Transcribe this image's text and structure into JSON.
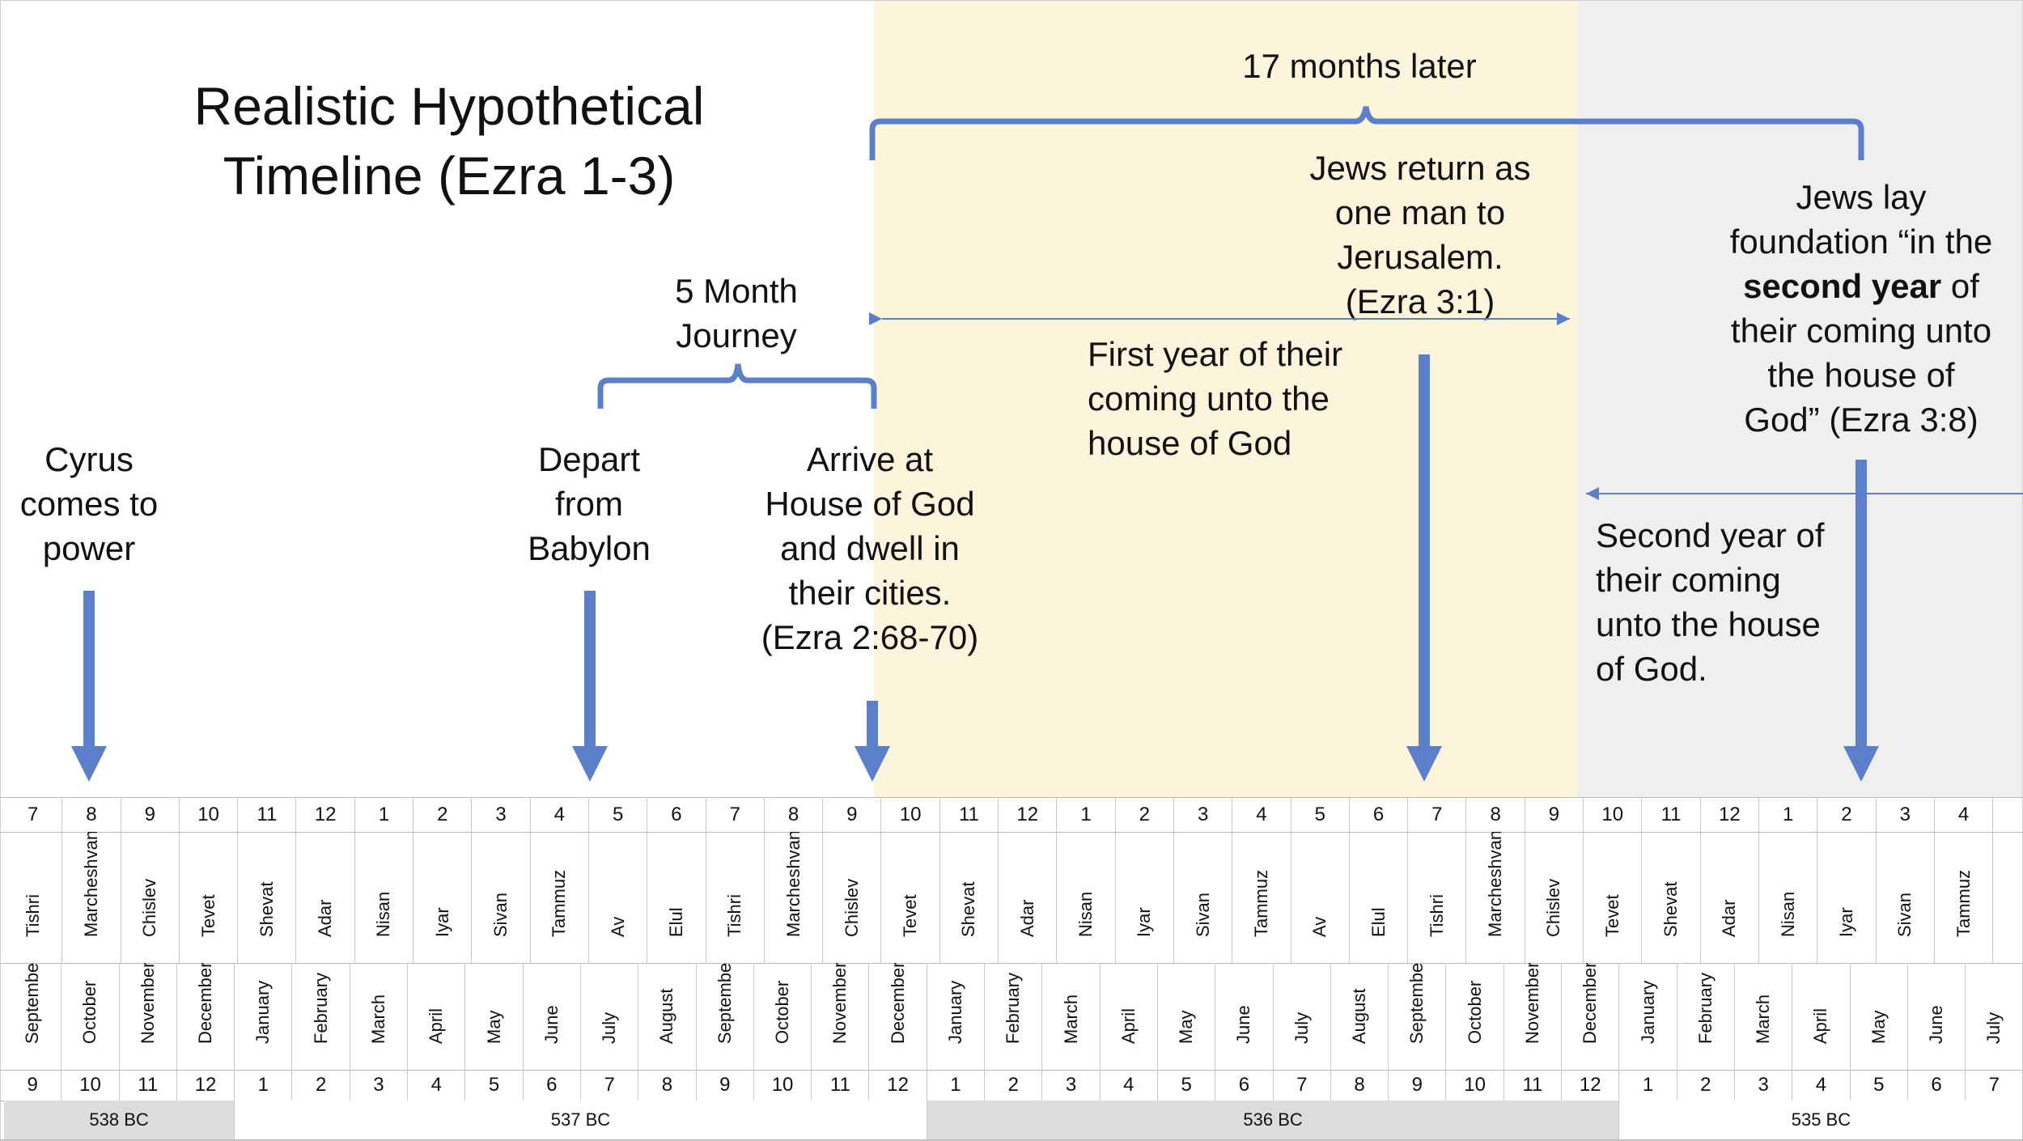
{
  "title": {
    "line1": "Realistic Hypothetical",
    "line2": "Timeline (Ezra 1-3)"
  },
  "labels": {
    "cyrus": [
      "Cyrus",
      "comes to",
      "power"
    ],
    "depart": [
      "Depart",
      "from",
      "Babylon"
    ],
    "arrive": [
      "Arrive at",
      "House of God",
      "and dwell in",
      "their cities.",
      "(Ezra 2:68-70)"
    ],
    "journey": [
      "5 Month",
      "Journey"
    ],
    "seventeen": "17 months later",
    "jews_return": [
      "Jews return as",
      "one man to",
      "Jerusalem.",
      "(Ezra 3:1)"
    ],
    "first_year": [
      "First year of their",
      "coming unto the",
      "house of God"
    ],
    "second_year": [
      "Second year of",
      "their coming",
      "unto the house",
      "of God."
    ],
    "foundation": {
      "line1": "Jews lay",
      "line2": "foundation “in the",
      "line3_bold": "second year",
      "line3_rest": " of",
      "line4": "their coming unto",
      "line5": "the house of",
      "line6": "God” (Ezra 3:8)"
    }
  },
  "colors": {
    "accent": "#5b7fc8",
    "first_year_bg": "#fdf4dc",
    "second_year_bg": "#efefef",
    "year_row_bg": "#dcdcdc"
  },
  "timeline": {
    "hebrew_numbers": [
      "7",
      "8",
      "9",
      "10",
      "11",
      "12",
      "1",
      "2",
      "3",
      "4",
      "5",
      "6",
      "7",
      "8",
      "9",
      "10",
      "11",
      "12",
      "1",
      "2",
      "3",
      "4",
      "5",
      "6",
      "7",
      "8",
      "9",
      "10",
      "11",
      "12",
      "1",
      "2",
      "3",
      "4"
    ],
    "hebrew_months": [
      "Tishri",
      "Marcheshvan",
      "Chislev",
      "Tevet",
      "Shevat",
      "Adar",
      "Nisan",
      "Iyar",
      "Sivan",
      "Tammuz",
      "Av",
      "Elul",
      "Tishri",
      "Marcheshvan",
      "Chislev",
      "Tevet",
      "Shevat",
      "Adar",
      "Nisan",
      "Iyar",
      "Sivan",
      "Tammuz",
      "Av",
      "Elul",
      "Tishri",
      "Marcheshvan",
      "Chislev",
      "Tevet",
      "Shevat",
      "Adar",
      "Nisan",
      "Iyar",
      "Sivan",
      "Tammuz"
    ],
    "gregorian_months": [
      "September",
      "October",
      "November",
      "December",
      "January",
      "February",
      "March",
      "April",
      "May",
      "June",
      "July",
      "August",
      "September",
      "October",
      "November",
      "December",
      "January",
      "February",
      "March",
      "April",
      "May",
      "June",
      "July",
      "August",
      "September",
      "October",
      "November",
      "December",
      "January",
      "February",
      "March",
      "April",
      "May",
      "June",
      "July"
    ],
    "gregorian_numbers": [
      "9",
      "10",
      "11",
      "12",
      "1",
      "2",
      "3",
      "4",
      "5",
      "6",
      "7",
      "8",
      "9",
      "10",
      "11",
      "12",
      "1",
      "2",
      "3",
      "4",
      "5",
      "6",
      "7",
      "8",
      "9",
      "10",
      "11",
      "12",
      "1",
      "2",
      "3",
      "4",
      "5",
      "6",
      "7"
    ],
    "years": [
      {
        "label": "538 BC",
        "months": 4
      },
      {
        "label": "537 BC",
        "months": 12
      },
      {
        "label": "536 BC",
        "months": 12
      },
      {
        "label": "535 BC",
        "months": 7
      }
    ]
  }
}
